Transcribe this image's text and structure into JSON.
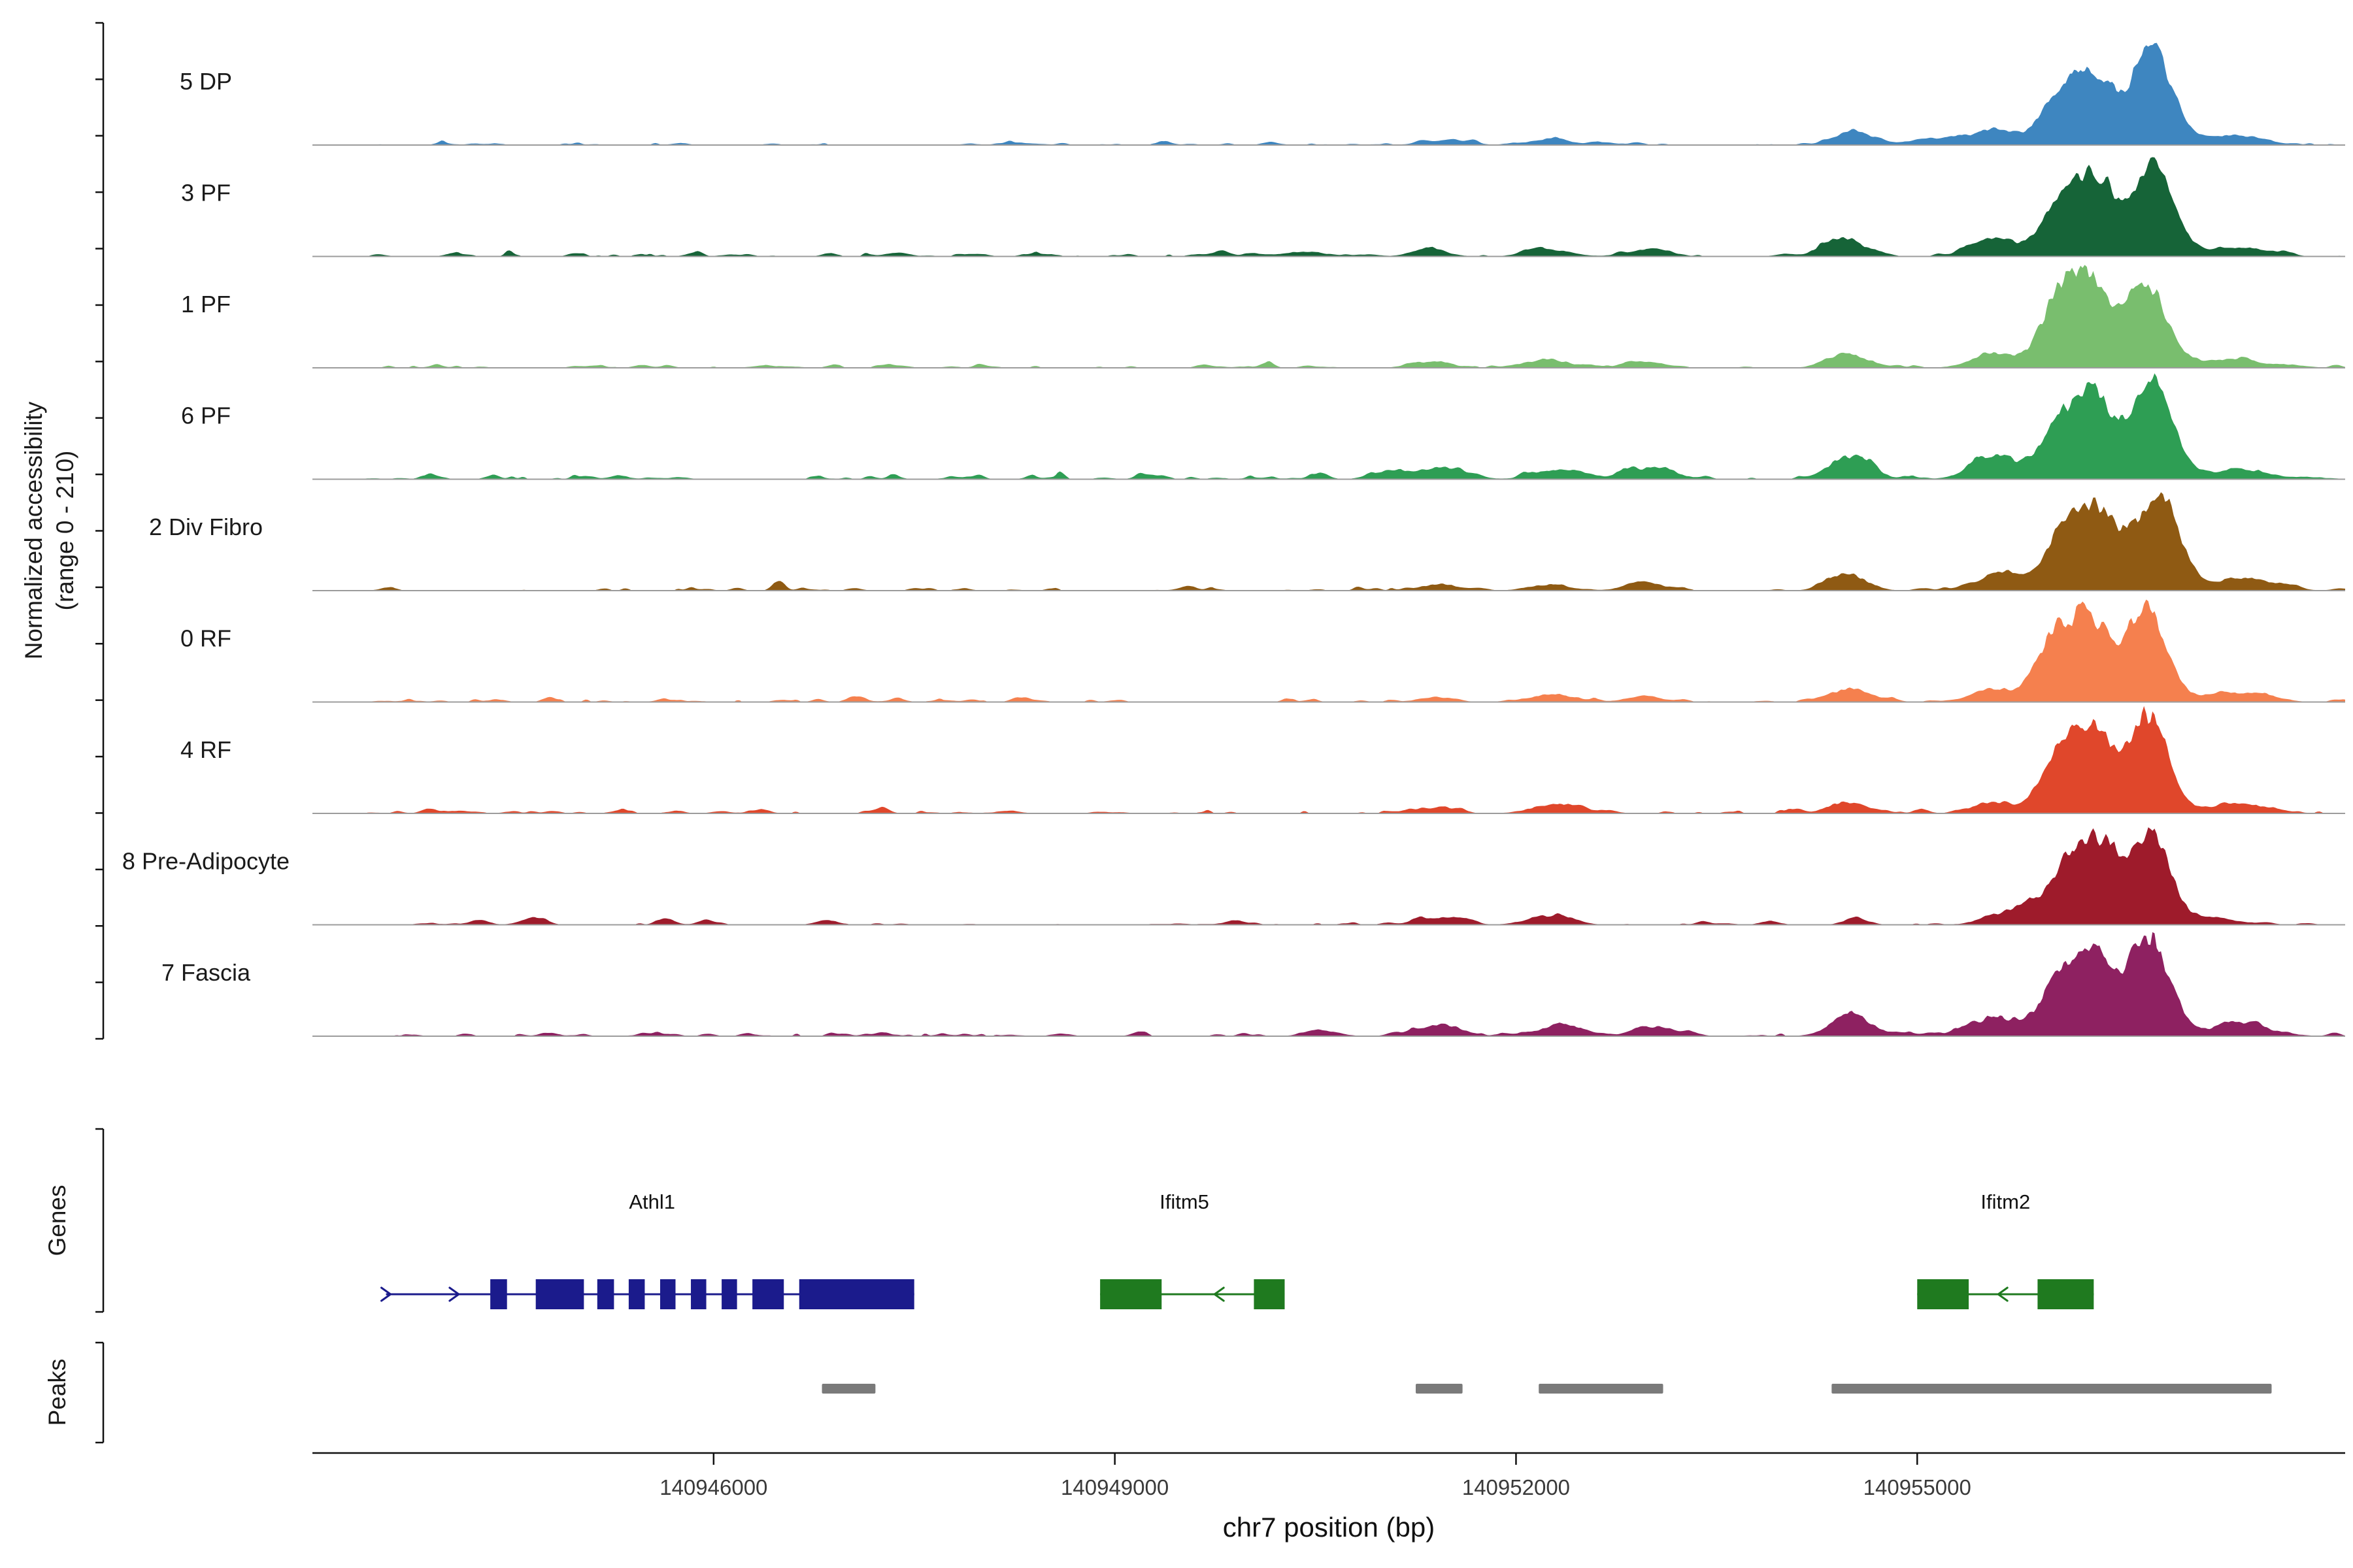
{
  "sections": {
    "genes_label": "Genes",
    "peaks_label": "Peaks"
  },
  "chart_data": {
    "type": "area",
    "title": "",
    "x_axis_label": "chr7 position (bp)",
    "y_axis_label": [
      "Normalized accessibility",
      "(range 0 - 210)"
    ],
    "x_domain_bp": [
      140943000,
      140958200
    ],
    "x_ticks_bp": [
      140946000,
      140949000,
      140952000,
      140955000
    ],
    "accessibility_range": [
      0,
      210
    ],
    "tracks": [
      {
        "label": "5 DP",
        "color": "#3E86C0",
        "noise": 0.022,
        "peaks": [
          [
            140956320,
            170,
            0.7
          ],
          [
            140956760,
            145,
            0.97
          ],
          [
            140956060,
            130,
            0.4
          ],
          [
            140955600,
            170,
            0.16
          ],
          [
            140955150,
            200,
            0.07
          ],
          [
            140954520,
            140,
            0.13
          ],
          [
            140952250,
            170,
            0.05
          ],
          [
            140951400,
            130,
            0.04
          ],
          [
            140957350,
            220,
            0.1
          ],
          [
            140948300,
            150,
            0.02
          ]
        ]
      },
      {
        "label": "3 PF",
        "color": "#166438",
        "noise": 0.028,
        "peaks": [
          [
            140956320,
            165,
            0.88
          ],
          [
            140956780,
            145,
            0.93
          ],
          [
            140956040,
            125,
            0.4
          ],
          [
            140955580,
            160,
            0.2
          ],
          [
            140954440,
            140,
            0.2
          ],
          [
            140953000,
            140,
            0.08
          ],
          [
            140952250,
            160,
            0.07
          ],
          [
            140951350,
            130,
            0.07
          ],
          [
            140950400,
            130,
            0.05
          ],
          [
            140957400,
            220,
            0.09
          ]
        ]
      },
      {
        "label": "1 PF",
        "color": "#79BE6E",
        "noise": 0.024,
        "peaks": [
          [
            140956260,
            165,
            0.96
          ],
          [
            140956720,
            145,
            0.88
          ],
          [
            140956010,
            120,
            0.42
          ],
          [
            140955570,
            160,
            0.14
          ],
          [
            140954470,
            140,
            0.14
          ],
          [
            140952950,
            140,
            0.07
          ],
          [
            140952200,
            160,
            0.08
          ],
          [
            140951350,
            130,
            0.06
          ],
          [
            140957350,
            220,
            0.09
          ]
        ]
      },
      {
        "label": "6 PF",
        "color": "#2E9E54",
        "noise": 0.034,
        "peaks": [
          [
            140956320,
            165,
            0.84
          ],
          [
            140956770,
            145,
            0.96
          ],
          [
            140956040,
            130,
            0.45
          ],
          [
            140955580,
            170,
            0.24
          ],
          [
            140954500,
            150,
            0.24
          ],
          [
            140953050,
            150,
            0.11
          ],
          [
            140952350,
            180,
            0.1
          ],
          [
            140951450,
            170,
            0.13
          ],
          [
            140951050,
            120,
            0.08
          ],
          [
            140957400,
            220,
            0.1
          ]
        ]
      },
      {
        "label": "2 Div Fibro",
        "color": "#8F5A13",
        "noise": 0.028,
        "peaks": [
          [
            140956360,
            165,
            0.78
          ],
          [
            140956800,
            150,
            1.0
          ],
          [
            140956080,
            130,
            0.5
          ],
          [
            140955620,
            160,
            0.18
          ],
          [
            140954480,
            140,
            0.16
          ],
          [
            140952950,
            140,
            0.07
          ],
          [
            140952250,
            150,
            0.06
          ],
          [
            140951400,
            130,
            0.06
          ],
          [
            140957450,
            220,
            0.12
          ]
        ]
      },
      {
        "label": "0 RF",
        "color": "#F5804E",
        "noise": 0.027,
        "peaks": [
          [
            140956260,
            160,
            0.92
          ],
          [
            140956710,
            145,
            1.0
          ],
          [
            140955990,
            120,
            0.44
          ],
          [
            140955570,
            160,
            0.14
          ],
          [
            140954500,
            150,
            0.14
          ],
          [
            140952950,
            130,
            0.06
          ],
          [
            140952250,
            150,
            0.07
          ],
          [
            140951400,
            130,
            0.05
          ],
          [
            140957350,
            220,
            0.1
          ]
        ]
      },
      {
        "label": "4 RF",
        "color": "#E0472B",
        "noise": 0.026,
        "peaks": [
          [
            140956290,
            160,
            0.94
          ],
          [
            140956730,
            145,
            1.0
          ],
          [
            140956010,
            120,
            0.4
          ],
          [
            140955570,
            150,
            0.12
          ],
          [
            140954490,
            140,
            0.11
          ],
          [
            140952300,
            170,
            0.1
          ],
          [
            140951400,
            130,
            0.05
          ],
          [
            140957400,
            220,
            0.1
          ]
        ]
      },
      {
        "label": "8 Pre-Adipocyte",
        "color": "#9E1B2B",
        "noise": 0.016,
        "peaks": [
          [
            140956380,
            140,
            0.88
          ],
          [
            140956760,
            130,
            1.0
          ],
          [
            140956130,
            115,
            0.55
          ],
          [
            140955850,
            130,
            0.25
          ],
          [
            140955560,
            120,
            0.08
          ],
          [
            140954550,
            90,
            0.06
          ],
          [
            140952350,
            110,
            0.08
          ],
          [
            140952150,
            90,
            0.06
          ],
          [
            140951550,
            110,
            0.08
          ],
          [
            140951300,
            80,
            0.07
          ],
          [
            140957200,
            170,
            0.07
          ],
          [
            140944250,
            70,
            0.05
          ],
          [
            140944650,
            90,
            0.05
          ],
          [
            140945650,
            70,
            0.05
          ],
          [
            140945950,
            60,
            0.05
          ],
          [
            140946850,
            80,
            0.05
          ],
          [
            140949900,
            70,
            0.04
          ],
          [
            140953900,
            70,
            0.04
          ]
        ]
      },
      {
        "label": "7 Fascia",
        "color": "#8E2161",
        "noise": 0.033,
        "peaks": [
          [
            140956320,
            165,
            0.84
          ],
          [
            140956740,
            145,
            1.0
          ],
          [
            140956040,
            130,
            0.45
          ],
          [
            140955600,
            170,
            0.2
          ],
          [
            140954510,
            150,
            0.2
          ],
          [
            140953050,
            140,
            0.1
          ],
          [
            140952350,
            170,
            0.12
          ],
          [
            140951450,
            150,
            0.12
          ],
          [
            140950550,
            130,
            0.05
          ],
          [
            140957420,
            220,
            0.12
          ]
        ]
      }
    ],
    "genes": [
      {
        "name": "Athl1",
        "color": "#1B1B8C",
        "strand": "+",
        "line_bp": [
          140943550,
          140947500
        ],
        "exons_bp": [
          [
            140944330,
            140944455
          ],
          [
            140944670,
            140945030
          ],
          [
            140945130,
            140945255
          ],
          [
            140945365,
            140945485
          ],
          [
            140945600,
            140945715
          ],
          [
            140945830,
            140945945
          ],
          [
            140946060,
            140946175
          ],
          [
            140946290,
            140946525
          ],
          [
            140946640,
            140947500
          ]
        ],
        "label_bp": 140945540,
        "chevrons_bp": [
          140943550,
          140944060
        ]
      },
      {
        "name": "Ifitm5",
        "color": "#1F7A1F",
        "strand": "-",
        "line_bp": [
          140948890,
          140950270
        ],
        "exons_bp": [
          [
            140948890,
            140949350
          ],
          [
            140950040,
            140950270
          ]
        ],
        "label_bp": 140949520,
        "chevrons_bp": [
          140949780
        ]
      },
      {
        "name": "Ifitm2",
        "color": "#1F7A1F",
        "strand": "-",
        "line_bp": [
          140955000,
          140956320
        ],
        "exons_bp": [
          [
            140955000,
            140955385
          ],
          [
            140955900,
            140956320
          ]
        ],
        "label_bp": 140955660,
        "chevrons_bp": [
          140955640
        ]
      }
    ],
    "peak_regions_bp": [
      [
        140946810,
        140947210
      ],
      [
        140951250,
        140951600
      ],
      [
        140952170,
        140953100
      ],
      [
        140954360,
        140957650
      ]
    ]
  }
}
